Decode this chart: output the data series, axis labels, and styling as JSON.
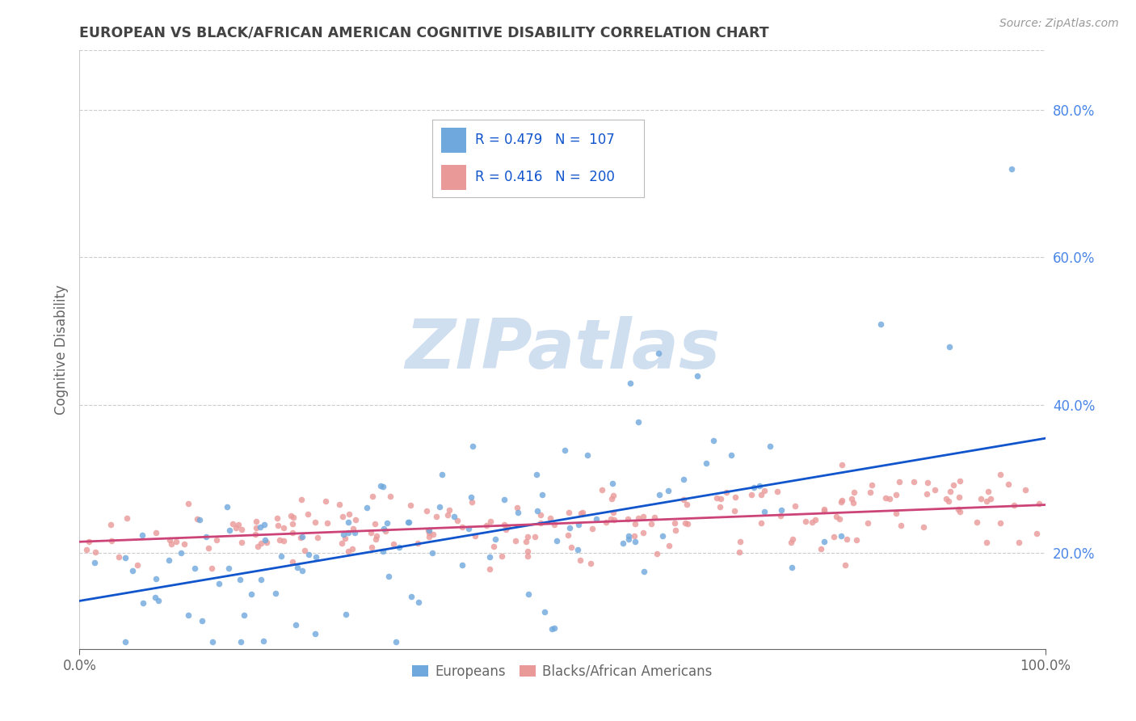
{
  "title": "EUROPEAN VS BLACK/AFRICAN AMERICAN COGNITIVE DISABILITY CORRELATION CHART",
  "source": "Source: ZipAtlas.com",
  "ylabel": "Cognitive Disability",
  "yticks_labels": [
    "20.0%",
    "40.0%",
    "60.0%",
    "80.0%"
  ],
  "ytick_vals": [
    0.2,
    0.4,
    0.6,
    0.8
  ],
  "xlim": [
    0.0,
    1.0
  ],
  "ylim": [
    0.07,
    0.88
  ],
  "blue_color": "#6fa8dc",
  "pink_color": "#ea9999",
  "blue_line_color": "#1155cc",
  "pink_line_color": "#cc4477",
  "title_color": "#434343",
  "source_color": "#999999",
  "axis_color": "#666666",
  "ytick_color": "#4a86e8",
  "legend_text_color": "#1155cc",
  "watermark_color": "#d0dff0",
  "background_color": "#ffffff",
  "grid_color": "#cccccc",
  "blue_trend_x0": 0.0,
  "blue_trend_y0": 0.135,
  "blue_trend_x1": 1.0,
  "blue_trend_y1": 0.355,
  "pink_trend_x0": 0.0,
  "pink_trend_y0": 0.215,
  "pink_trend_x1": 1.0,
  "pink_trend_y1": 0.265
}
